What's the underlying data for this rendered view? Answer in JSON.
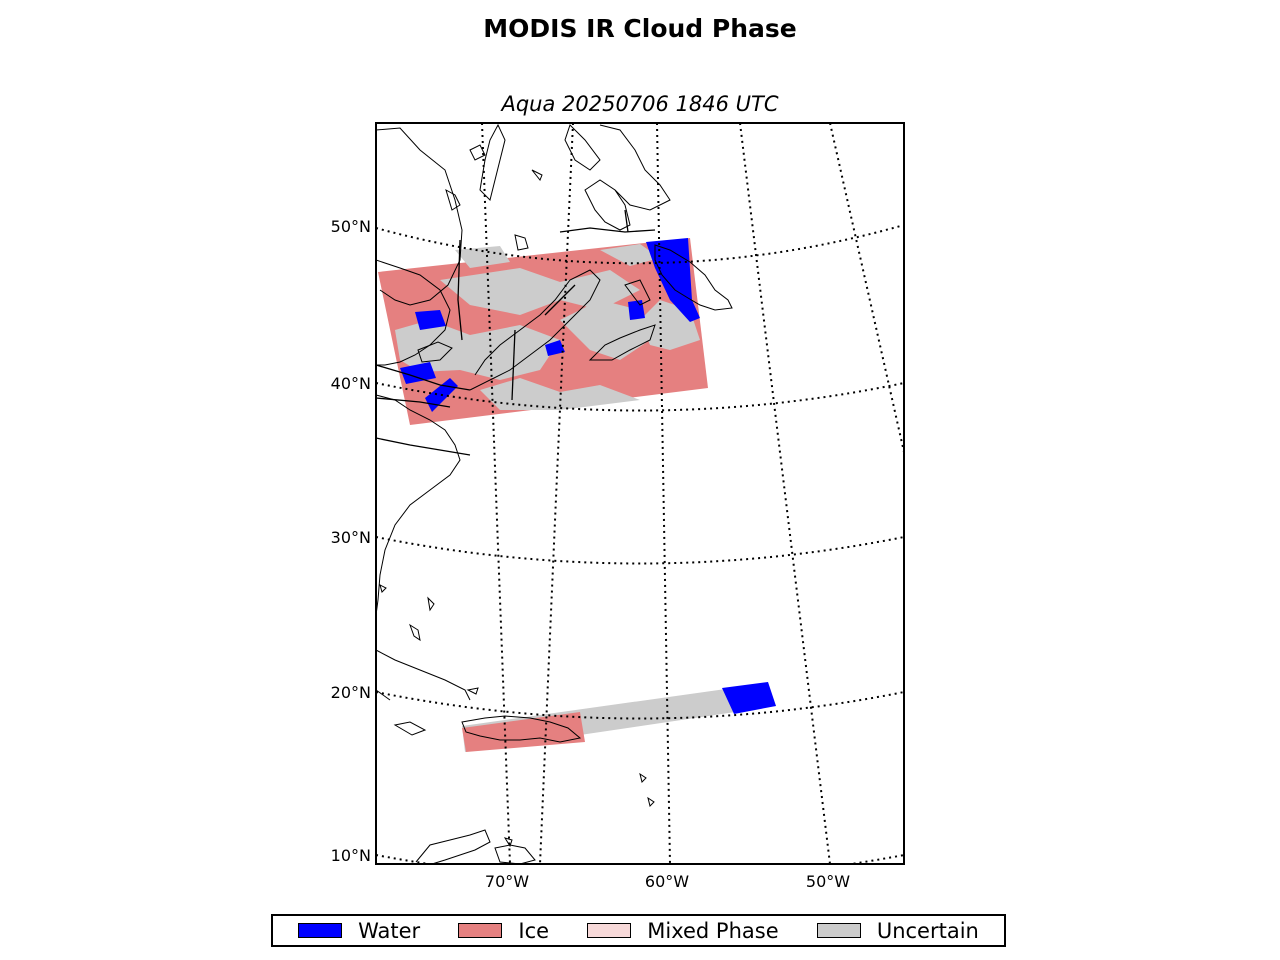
{
  "title": "MODIS IR Cloud Phase",
  "subtitle": "Aqua 20250706 1846 UTC",
  "lat_labels": [
    "50°N",
    "40°N",
    "30°N",
    "20°N",
    "10°N"
  ],
  "lon_labels": [
    "70°W",
    "60°W",
    "50°W"
  ],
  "legend": [
    {
      "label": "Water",
      "color": "#0000ff"
    },
    {
      "label": "Ice",
      "color": "#e58080"
    },
    {
      "label": "Mixed Phase",
      "color": "#f7d9d9"
    },
    {
      "label": "Uncertain",
      "color": "#cccccc"
    }
  ],
  "colors": {
    "water": "#0000ff",
    "ice": "#e58080",
    "mixed": "#f7d9d9",
    "uncertain": "#cccccc"
  }
}
